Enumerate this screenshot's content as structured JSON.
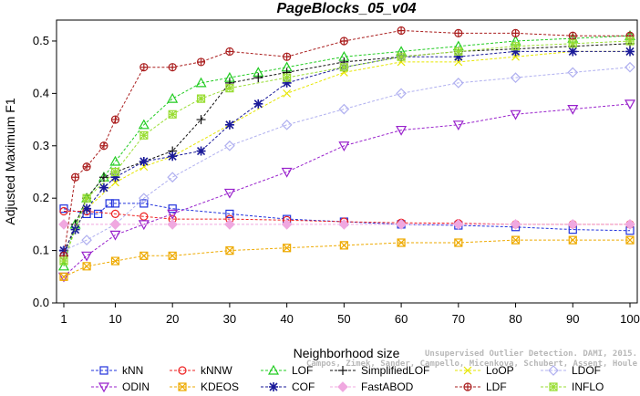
{
  "chart_data": {
    "type": "line",
    "title": "PageBlocks_05_v04",
    "xlabel": "Neighborhood size",
    "ylabel": "Adjusted Maximum F1",
    "xlim": [
      1,
      100
    ],
    "ylim": [
      0,
      0.54
    ],
    "xticks": [
      1,
      10,
      20,
      30,
      40,
      50,
      60,
      70,
      80,
      90,
      100
    ],
    "yticks": [
      0.0,
      0.1,
      0.2,
      0.3,
      0.4,
      0.5
    ],
    "ytick_labels": [
      "0.0",
      "0.1",
      "0.2",
      "0.3",
      "0.4",
      "0.5"
    ],
    "grid": false,
    "legend_position": "bottom",
    "watermark_lines": [
      "Unsupervised Outlier Detection. DAMI, 2015.",
      "Campos, Zimek, Sander, Campello, Micenkova, Schubert, Assent, Houle"
    ],
    "series": [
      {
        "name": "kNN",
        "color": "#2233dd",
        "marker": "square",
        "x": [
          1,
          5,
          7,
          9,
          10,
          15,
          20,
          30,
          40,
          50,
          60,
          70,
          80,
          90,
          100
        ],
        "y": [
          0.18,
          0.17,
          0.17,
          0.19,
          0.19,
          0.19,
          0.18,
          0.17,
          0.16,
          0.155,
          0.15,
          0.148,
          0.145,
          0.14,
          0.138
        ]
      },
      {
        "name": "kNNW",
        "color": "#ee2222",
        "marker": "circle",
        "x": [
          1,
          5,
          10,
          15,
          20,
          30,
          40,
          50,
          60,
          70,
          80,
          90,
          100
        ],
        "y": [
          0.175,
          0.175,
          0.17,
          0.165,
          0.16,
          0.16,
          0.158,
          0.155,
          0.153,
          0.152,
          0.15,
          0.15,
          0.15
        ]
      },
      {
        "name": "LOF",
        "color": "#22cc22",
        "marker": "triangle-up",
        "x": [
          1,
          3,
          5,
          8,
          10,
          15,
          20,
          25,
          30,
          35,
          40,
          50,
          60,
          70,
          80,
          90,
          100
        ],
        "y": [
          0.07,
          0.15,
          0.2,
          0.24,
          0.27,
          0.34,
          0.39,
          0.42,
          0.43,
          0.44,
          0.45,
          0.47,
          0.48,
          0.49,
          0.5,
          0.505,
          0.51
        ]
      },
      {
        "name": "SimplifiedLOF",
        "color": "#111111",
        "marker": "plus",
        "x": [
          1,
          3,
          5,
          8,
          10,
          15,
          20,
          25,
          30,
          35,
          40,
          50,
          60,
          70,
          80,
          90,
          100
        ],
        "y": [
          0.09,
          0.15,
          0.2,
          0.24,
          0.25,
          0.27,
          0.29,
          0.35,
          0.42,
          0.43,
          0.44,
          0.46,
          0.47,
          0.48,
          0.485,
          0.49,
          0.495
        ]
      },
      {
        "name": "LoOP",
        "color": "#e6e600",
        "marker": "x",
        "x": [
          1,
          5,
          10,
          15,
          20,
          30,
          40,
          50,
          60,
          70,
          80,
          90,
          100
        ],
        "y": [
          0.1,
          0.18,
          0.23,
          0.26,
          0.28,
          0.34,
          0.4,
          0.44,
          0.46,
          0.46,
          0.47,
          0.48,
          0.48
        ]
      },
      {
        "name": "LDOF",
        "color": "#b0b0f0",
        "marker": "diamond",
        "x": [
          1,
          5,
          10,
          15,
          20,
          30,
          40,
          50,
          60,
          70,
          80,
          90,
          100
        ],
        "y": [
          0.1,
          0.12,
          0.15,
          0.2,
          0.24,
          0.3,
          0.34,
          0.37,
          0.4,
          0.42,
          0.43,
          0.44,
          0.45
        ]
      },
      {
        "name": "ODIN",
        "color": "#9922cc",
        "marker": "triangle-down",
        "x": [
          1,
          5,
          10,
          15,
          20,
          30,
          40,
          50,
          60,
          70,
          80,
          90,
          100
        ],
        "y": [
          0.05,
          0.09,
          0.13,
          0.15,
          0.17,
          0.21,
          0.25,
          0.3,
          0.33,
          0.34,
          0.36,
          0.37,
          0.38
        ]
      },
      {
        "name": "KDEOS",
        "color": "#eeaa00",
        "marker": "square-x",
        "x": [
          1,
          5,
          10,
          15,
          20,
          30,
          40,
          50,
          60,
          70,
          80,
          90,
          100
        ],
        "y": [
          0.05,
          0.07,
          0.08,
          0.09,
          0.09,
          0.1,
          0.105,
          0.11,
          0.115,
          0.115,
          0.12,
          0.12,
          0.12
        ]
      },
      {
        "name": "COF",
        "color": "#1a1a99",
        "marker": "asterisk",
        "x": [
          1,
          3,
          5,
          8,
          10,
          15,
          20,
          25,
          30,
          35,
          40,
          50,
          60,
          70,
          80,
          90,
          100
        ],
        "y": [
          0.1,
          0.14,
          0.18,
          0.22,
          0.24,
          0.27,
          0.28,
          0.29,
          0.34,
          0.38,
          0.42,
          0.45,
          0.47,
          0.47,
          0.48,
          0.48,
          0.48
        ]
      },
      {
        "name": "FastABOD",
        "color": "#f0a8e0",
        "marker": "diamond-filled",
        "x": [
          1,
          10,
          20,
          30,
          40,
          50,
          60,
          70,
          80,
          90,
          100
        ],
        "y": [
          0.15,
          0.15,
          0.15,
          0.15,
          0.15,
          0.15,
          0.15,
          0.15,
          0.15,
          0.15,
          0.15
        ]
      },
      {
        "name": "LDF",
        "color": "#aa1e1e",
        "marker": "circle-plus",
        "x": [
          1,
          3,
          5,
          8,
          10,
          15,
          20,
          25,
          30,
          40,
          50,
          60,
          70,
          80,
          90,
          100
        ],
        "y": [
          0.09,
          0.24,
          0.26,
          0.3,
          0.35,
          0.45,
          0.45,
          0.46,
          0.48,
          0.47,
          0.5,
          0.52,
          0.515,
          0.515,
          0.51,
          0.51
        ]
      },
      {
        "name": "INFLO",
        "color": "#99dd33",
        "marker": "star-square",
        "x": [
          1,
          5,
          10,
          15,
          20,
          25,
          30,
          40,
          50,
          60,
          70,
          80,
          90,
          100
        ],
        "y": [
          0.08,
          0.2,
          0.25,
          0.32,
          0.36,
          0.39,
          0.41,
          0.43,
          0.45,
          0.47,
          0.48,
          0.49,
          0.495,
          0.5
        ]
      }
    ]
  }
}
